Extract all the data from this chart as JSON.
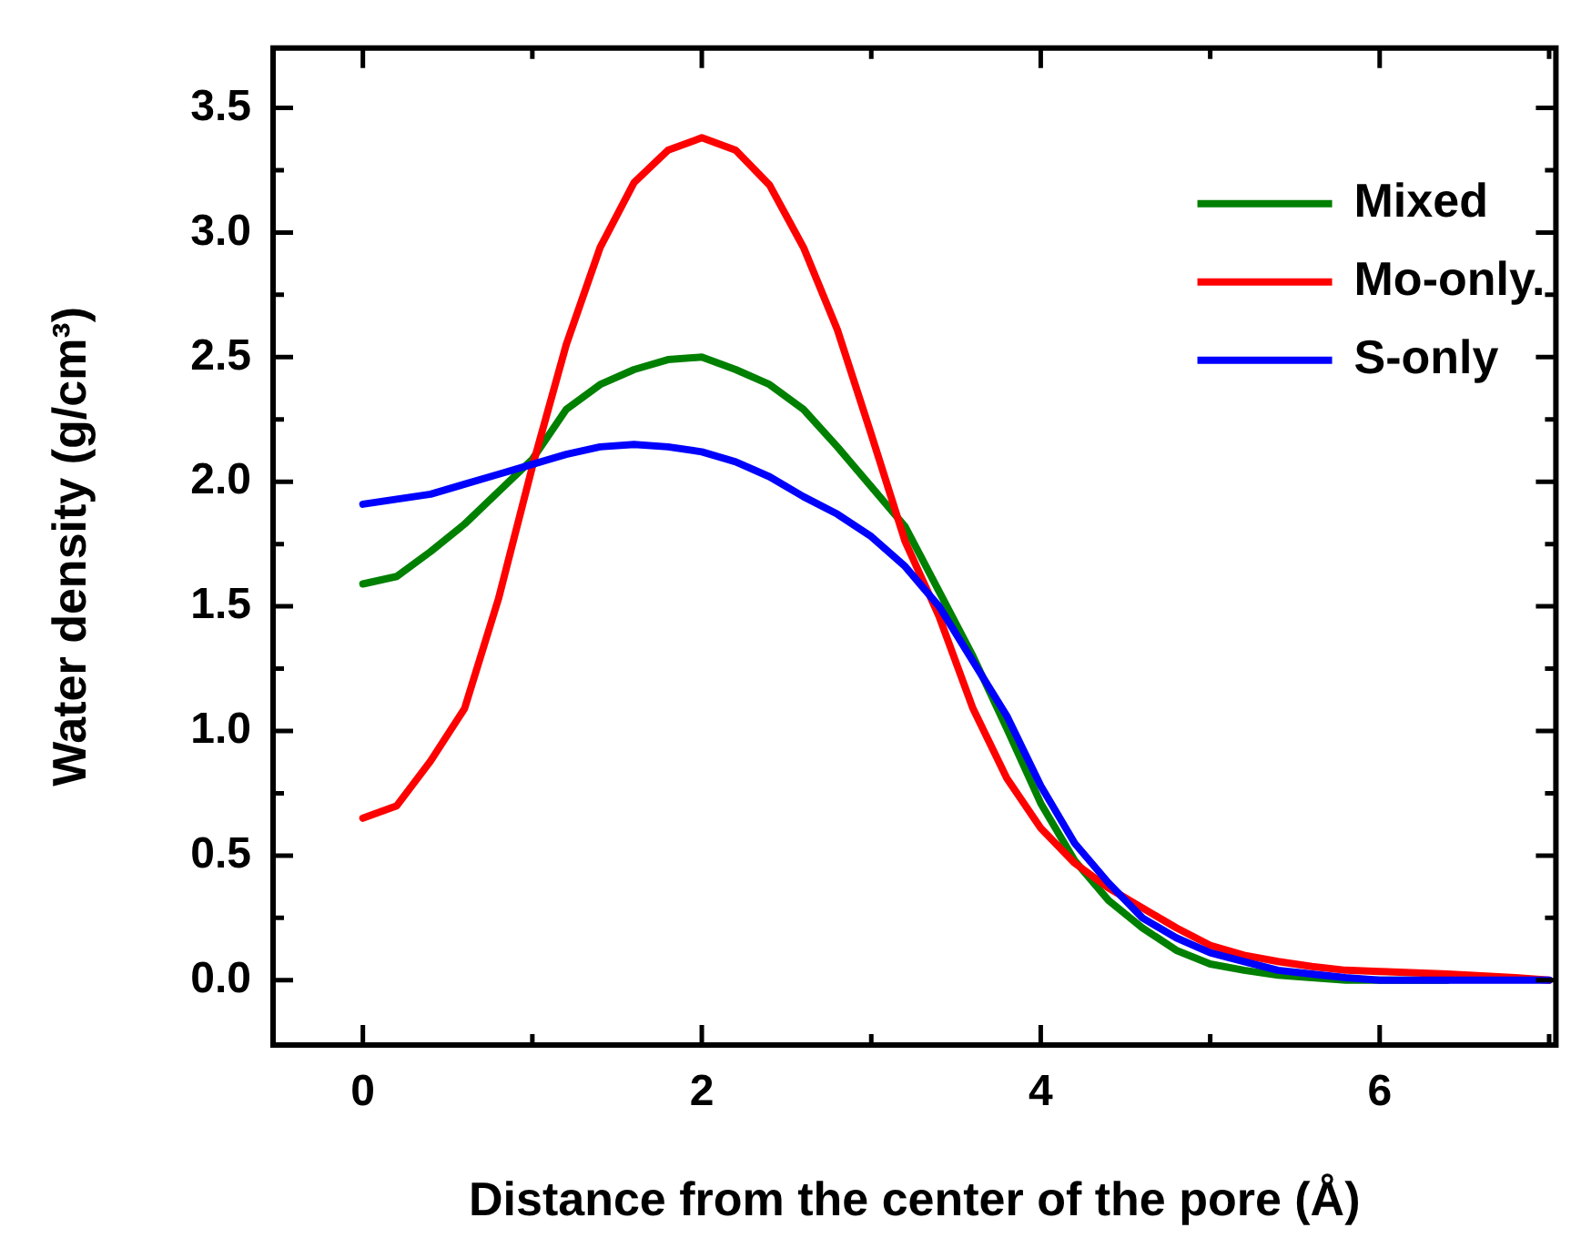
{
  "chart_data": {
    "type": "line",
    "xlabel": "Distance from the center of the pore (Å)",
    "ylabel": "Water density (g/cm³)",
    "xlim": [
      -0.53,
      7.04
    ],
    "ylim": [
      -0.26,
      3.74
    ],
    "xticks": [
      0,
      {
        "value": 1,
        "label": null
      },
      2,
      {
        "value": 3,
        "label": null
      },
      4,
      {
        "value": 5,
        "label": null
      },
      6,
      {
        "value": 7,
        "label": null
      }
    ],
    "yticks": [
      {
        "value": 0,
        "label": "0.0"
      },
      {
        "value": 0.25,
        "label": null
      },
      0.5,
      {
        "value": 0.75,
        "label": null
      },
      {
        "value": 1,
        "label": "1.0"
      },
      {
        "value": 1.25,
        "label": null
      },
      1.5,
      {
        "value": 1.75,
        "label": null
      },
      {
        "value": 2,
        "label": "2.0"
      },
      {
        "value": 2.25,
        "label": null
      },
      2.5,
      {
        "value": 2.75,
        "label": null
      },
      {
        "value": 3,
        "label": "3.0"
      },
      {
        "value": 3.25,
        "label": null
      },
      3.5
    ],
    "grid": false,
    "legend": "top right",
    "marker": "none",
    "line_style": "solid",
    "x": [
      0,
      0.2,
      0.4,
      0.6,
      0.8,
      1.0,
      1.2,
      1.4,
      1.6,
      1.8,
      2.0,
      2.2,
      2.4,
      2.6,
      2.8,
      3.0,
      3.2,
      3.4,
      3.6,
      3.8,
      4.0,
      4.2,
      4.4,
      4.6,
      4.8,
      5.0,
      5.2,
      5.4,
      5.6,
      5.8,
      6.0,
      6.4,
      6.8,
      7.0
    ],
    "series": [
      {
        "name": "Mixed",
        "color": "#008000",
        "values": [
          1.59,
          1.62,
          1.72,
          1.83,
          1.96,
          2.09,
          2.29,
          2.39,
          2.45,
          2.49,
          2.5,
          2.45,
          2.39,
          2.29,
          2.14,
          1.98,
          1.82,
          1.56,
          1.3,
          1.01,
          0.71,
          0.48,
          0.32,
          0.21,
          0.12,
          0.065,
          0.04,
          0.02,
          0.01,
          0,
          0,
          0,
          null,
          null
        ]
      },
      {
        "name": "Mo-only.",
        "color": "#ff0000",
        "values": [
          0.65,
          0.7,
          0.88,
          1.09,
          1.53,
          2.06,
          2.55,
          2.94,
          3.2,
          3.33,
          3.38,
          3.33,
          3.19,
          2.94,
          2.61,
          2.19,
          1.76,
          1.46,
          1.09,
          0.81,
          0.61,
          0.47,
          0.37,
          0.29,
          0.21,
          0.14,
          0.1,
          0.075,
          0.055,
          0.04,
          0.035,
          0.025,
          0.01,
          0
        ]
      },
      {
        "name": "S-only",
        "color": "#0000ff",
        "values": [
          1.91,
          1.93,
          1.95,
          1.99,
          2.03,
          2.07,
          2.11,
          2.14,
          2.15,
          2.14,
          2.12,
          2.08,
          2.02,
          1.94,
          1.87,
          1.78,
          1.66,
          1.5,
          1.28,
          1.06,
          0.78,
          0.55,
          0.39,
          0.25,
          0.17,
          0.11,
          0.075,
          0.04,
          0.025,
          0.01,
          0,
          0,
          0,
          0
        ]
      }
    ]
  }
}
